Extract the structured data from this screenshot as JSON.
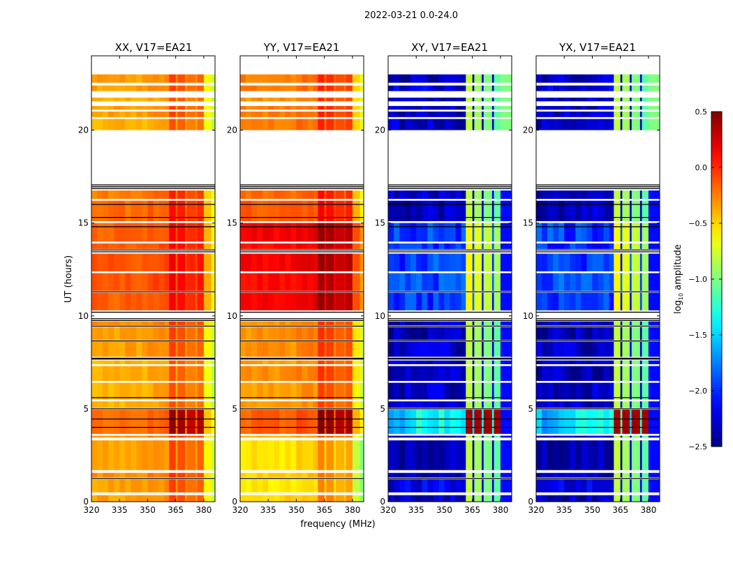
{
  "chart_data": {
    "type": "heatmap",
    "title": "2022-03-21 0.0-24.0",
    "xlabel": "frequency (MHz)",
    "ylabel": "UT (hours)",
    "xlim": [
      320,
      386
    ],
    "ylim": [
      0,
      24
    ],
    "xticks": [
      320,
      335,
      350,
      365,
      380
    ],
    "yticks": [
      0,
      5,
      10,
      15,
      20
    ],
    "colormap": "jet",
    "colorbar": {
      "label_main": "log",
      "label_sub": "10",
      "label_rest": " amplitude",
      "vmin": -2.5,
      "vmax": 0.5,
      "ticks": [
        "0.5",
        "0.0",
        "−0.5",
        "−1.0",
        "−1.5",
        "−2.0",
        "−2.5"
      ],
      "tick_values": [
        0.5,
        0.0,
        -0.5,
        -1.0,
        -1.5,
        -2.0,
        -2.5
      ]
    },
    "panels": [
      {
        "title": "XX, V17=EA21",
        "key": "XX"
      },
      {
        "title": "YY, V17=EA21",
        "key": "YY"
      },
      {
        "title": "XY, V17=EA21",
        "key": "XY"
      },
      {
        "title": "YX, V17=EA21",
        "key": "YX"
      }
    ],
    "time_segments": [
      {
        "t": [
          0.0,
          0.35
        ],
        "XX": -0.35,
        "YY": -0.5,
        "XY": -2.3,
        "YX": -2.3
      },
      {
        "t": [
          0.5,
          1.2
        ],
        "XX": -0.35,
        "YY": -0.55,
        "XY": -2.2,
        "YX": -2.2
      },
      {
        "t": [
          1.3,
          1.55
        ],
        "XX": -0.3,
        "YY": -0.5,
        "XY": -2.3,
        "YX": -2.3
      },
      {
        "t": [
          1.7,
          3.3
        ],
        "XX": -0.35,
        "YY": -0.55,
        "XY": -2.35,
        "YX": -2.35
      },
      {
        "t": [
          3.45,
          3.55
        ],
        "XX": -0.3,
        "YY": -0.4,
        "XY": -2.3,
        "YX": -2.3
      },
      {
        "t": [
          3.65,
          4.95
        ],
        "XX": -0.2,
        "YY": -0.15,
        "XY": -1.6,
        "YX": -1.6,
        "strong": true
      },
      {
        "t": [
          5.05,
          5.4
        ],
        "XX": -0.4,
        "YY": -0.35,
        "XY": -2.3,
        "YX": -2.3
      },
      {
        "t": [
          5.5,
          6.4
        ],
        "XX": -0.4,
        "YY": -0.35,
        "XY": -2.3,
        "YX": -2.3
      },
      {
        "t": [
          6.5,
          7.3
        ],
        "XX": -0.4,
        "YY": -0.3,
        "XY": -2.35,
        "YX": -2.35
      },
      {
        "t": [
          7.4,
          7.6
        ],
        "XX": -0.4,
        "YY": -0.35,
        "XY": -2.3,
        "YX": -2.3
      },
      {
        "t": [
          7.8,
          8.6
        ],
        "XX": -0.35,
        "YY": -0.3,
        "XY": -2.3,
        "YX": -2.3
      },
      {
        "t": [
          8.7,
          9.4
        ],
        "XX": -0.35,
        "YY": -0.3,
        "XY": -2.35,
        "YX": -2.35
      },
      {
        "t": [
          9.5,
          9.7
        ],
        "XX": -0.3,
        "YY": -0.3,
        "XY": -2.3,
        "YX": -2.3
      },
      {
        "t": [
          10.3,
          11.25
        ],
        "XX": -0.15,
        "YY": 0.15,
        "XY": -1.95,
        "YX": -1.95
      },
      {
        "t": [
          11.35,
          12.3
        ],
        "XX": -0.12,
        "YY": 0.1,
        "XY": -1.9,
        "YX": -1.9
      },
      {
        "t": [
          12.4,
          13.35
        ],
        "XX": -0.12,
        "YY": 0.15,
        "XY": -1.95,
        "YX": -1.95
      },
      {
        "t": [
          13.6,
          13.9
        ],
        "XX": -0.15,
        "YY": 0.1,
        "XY": -2.0,
        "YX": -2.0
      },
      {
        "t": [
          14.0,
          15.0
        ],
        "XX": -0.15,
        "YY": 0.15,
        "XY": -1.95,
        "YX": -1.95
      },
      {
        "t": [
          15.1,
          16.2
        ],
        "XX": -0.2,
        "YY": -0.15,
        "XY": -2.3,
        "YX": -2.3
      },
      {
        "t": [
          16.3,
          16.75
        ],
        "XX": -0.25,
        "YY": -0.2,
        "XY": -2.3,
        "YX": -2.3
      },
      {
        "t": [
          20.0,
          20.6
        ],
        "XX": -0.4,
        "YY": -0.25,
        "XY": -2.3,
        "YX": -2.3
      },
      {
        "t": [
          20.7,
          21.0
        ],
        "XX": -0.35,
        "YY": -0.25,
        "XY": -2.3,
        "YX": -2.3
      },
      {
        "t": [
          21.1,
          21.3
        ],
        "XX": -0.35,
        "YY": -0.25,
        "XY": -2.3,
        "YX": -2.3
      },
      {
        "t": [
          21.55,
          21.75
        ],
        "XX": -0.4,
        "YY": -0.3,
        "XY": -2.3,
        "YX": -2.3
      },
      {
        "t": [
          22.1,
          22.4
        ],
        "XX": -0.35,
        "YY": -0.25,
        "XY": -2.25,
        "YX": -2.25
      },
      {
        "t": [
          22.55,
          23.0
        ],
        "XX": -0.35,
        "YY": -0.25,
        "XY": -2.3,
        "YX": -2.3
      }
    ],
    "black_lines": [
      1.25,
      4.0,
      4.45,
      5.0,
      5.6,
      7.7,
      8.65,
      9.45,
      9.75,
      9.85,
      10.2,
      11.3,
      13.45,
      13.55,
      14.8,
      15.3,
      16.0,
      16.85,
      16.95,
      17.05
    ],
    "rfi_bands": [
      {
        "f": [
          361.5,
          365.0
        ],
        "parallel_boost": 0.3,
        "cross_level": -0.8,
        "strong_level": 0.4
      },
      {
        "f": [
          366.0,
          370.0
        ],
        "parallel_boost": 0.25,
        "cross_level": -0.9,
        "strong_level": 0.4
      },
      {
        "f": [
          371.0,
          375.5
        ],
        "parallel_boost": 0.15,
        "cross_level": -1.0,
        "strong_level": 0.4
      },
      {
        "f": [
          376.5,
          380.0
        ],
        "parallel_boost": 0.2,
        "cross_level": -1.1,
        "strong_level": 0.4
      }
    ]
  }
}
